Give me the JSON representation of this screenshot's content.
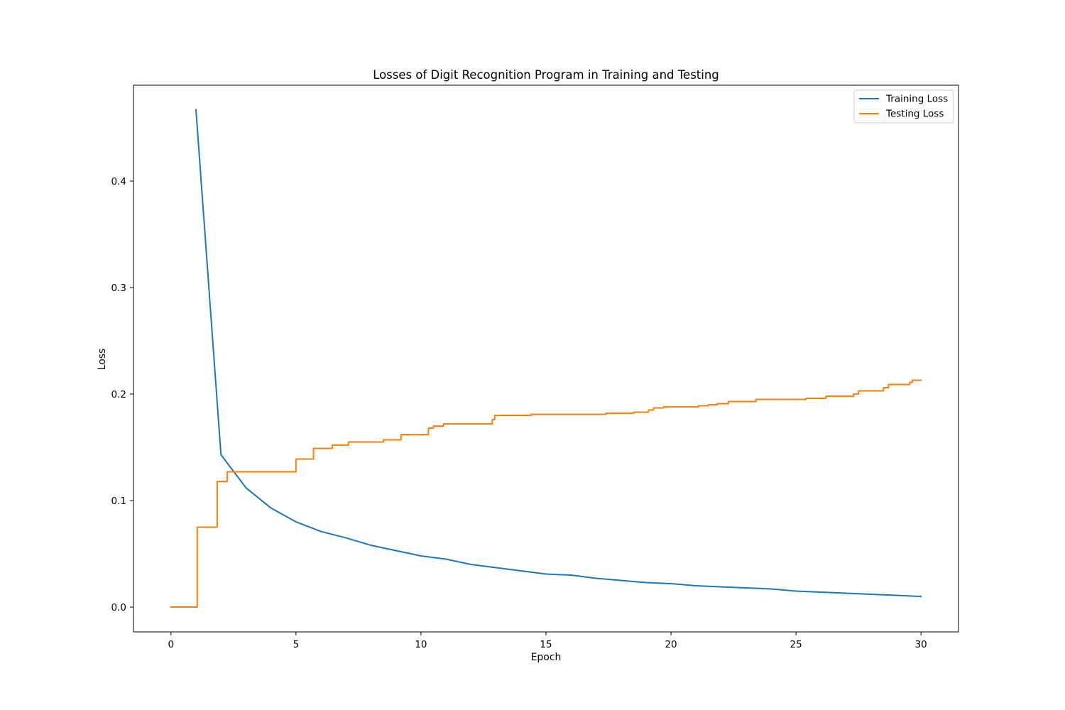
{
  "chart_data": {
    "type": "line",
    "title": "Losses of Digit Recognition Program in Training and Testing",
    "xlabel": "Epoch",
    "ylabel": "Loss",
    "xlim": [
      -1.5,
      31.5
    ],
    "ylim": [
      -0.0233,
      0.49
    ],
    "xticks": [
      0,
      5,
      10,
      15,
      20,
      25,
      30
    ],
    "yticks": [
      0.0,
      0.1,
      0.2,
      0.3,
      0.4
    ],
    "grid": false,
    "legend": "top-right",
    "series": [
      {
        "name": "Training Loss",
        "color": "#1f77b4",
        "style": "line",
        "x": [
          1,
          2,
          3,
          4,
          5,
          6,
          7,
          8,
          9,
          10,
          11,
          12,
          13,
          14,
          15,
          16,
          17,
          18,
          19,
          20,
          21,
          22,
          23,
          24,
          25,
          26,
          27,
          28,
          29,
          30
        ],
        "y": [
          0.467,
          0.143,
          0.112,
          0.093,
          0.08,
          0.071,
          0.065,
          0.058,
          0.053,
          0.048,
          0.045,
          0.04,
          0.037,
          0.034,
          0.031,
          0.03,
          0.027,
          0.025,
          0.023,
          0.022,
          0.02,
          0.019,
          0.018,
          0.017,
          0.015,
          0.014,
          0.013,
          0.012,
          0.011,
          0.01
        ]
      },
      {
        "name": "Testing Loss",
        "color": "#ff7f0e",
        "style": "step",
        "x": [
          0,
          1.05,
          1.85,
          2.25,
          5.0,
          5.7,
          6.45,
          7.1,
          8.5,
          9.2,
          10.3,
          10.5,
          10.9,
          12.85,
          12.95,
          14.4,
          17.4,
          18.5,
          19.1,
          19.3,
          19.7,
          21.1,
          21.5,
          21.85,
          22.3,
          23.4,
          25.4,
          26.2,
          27.3,
          27.5,
          28.5,
          28.7,
          29.55,
          29.65,
          30.0
        ],
        "y": [
          0.0,
          0.075,
          0.118,
          0.127,
          0.139,
          0.149,
          0.152,
          0.155,
          0.157,
          0.162,
          0.168,
          0.17,
          0.172,
          0.176,
          0.18,
          0.181,
          0.182,
          0.183,
          0.185,
          0.187,
          0.188,
          0.189,
          0.19,
          0.191,
          0.193,
          0.195,
          0.196,
          0.198,
          0.2,
          0.203,
          0.206,
          0.209,
          0.211,
          0.213,
          0.213
        ]
      }
    ]
  }
}
